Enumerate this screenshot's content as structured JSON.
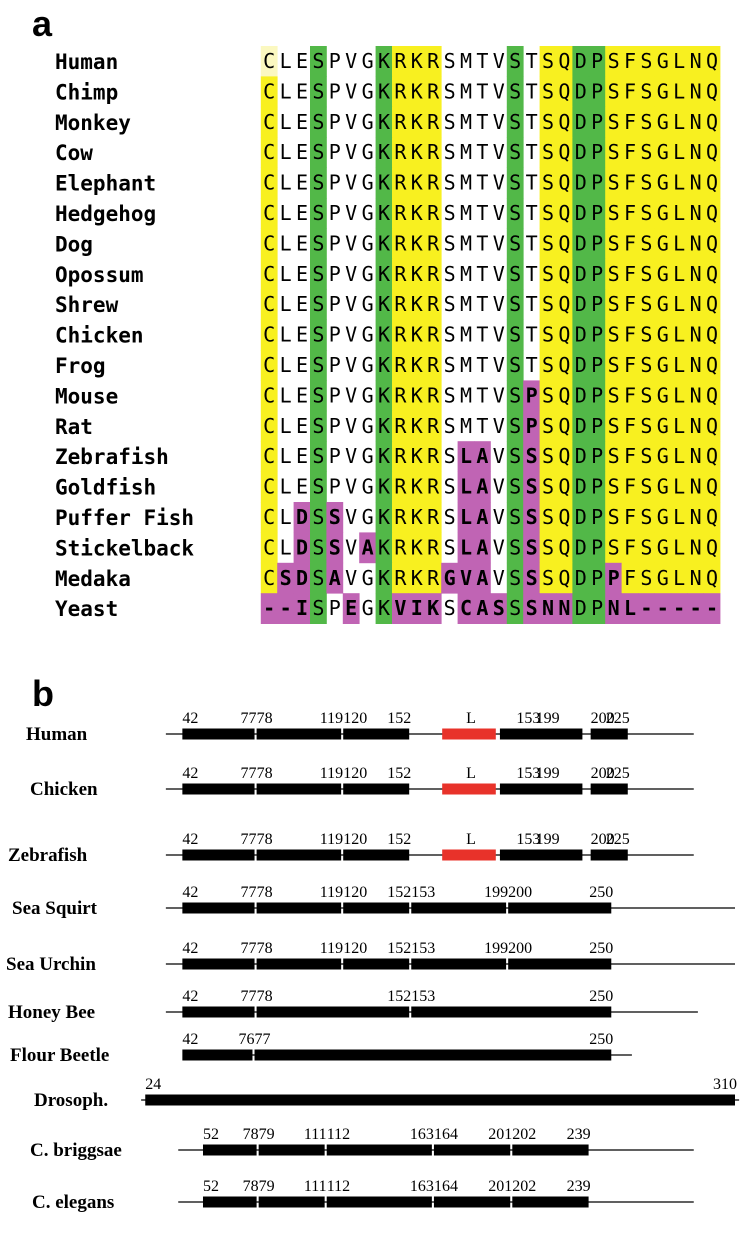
{
  "panels": {
    "a": {
      "label": "a"
    },
    "b": {
      "label": "b"
    }
  },
  "colors": {
    "yellow": "#f8f020",
    "green": "#52b848",
    "magenta": "#c064b4",
    "red": "#e8322a",
    "black": "#000000",
    "pale_yellow": "#fbf8c0"
  },
  "alignment": {
    "positions": 28,
    "sequences": [
      {
        "species": "Human",
        "seq": "CLESPVGKRKRSMTVSTSQDPSFSGLNQ",
        "bold": []
      },
      {
        "species": "Chimp",
        "seq": "CLESPVGKRKRSMTVSTSQDPSFSGLNQ",
        "bold": []
      },
      {
        "species": "Monkey",
        "seq": "CLESPVGKRKRSMTVSTSQDPSFSGLNQ",
        "bold": []
      },
      {
        "species": "Cow",
        "seq": "CLESPVGKRKRSMTVSTSQDPSFSGLNQ",
        "bold": []
      },
      {
        "species": "Elephant",
        "seq": "CLESPVGKRKRSMTVSTSQDPSFSGLNQ",
        "bold": []
      },
      {
        "species": "Hedgehog",
        "seq": "CLESPVGKRKRSMTVSTSQDPSFSGLNQ",
        "bold": []
      },
      {
        "species": "Dog",
        "seq": "CLESPVGKRKRSMTVSTSQDPSFSGLNQ",
        "bold": []
      },
      {
        "species": "Opossum",
        "seq": "CLESPVGKRKRSMTVSTSQDPSFSGLNQ",
        "bold": []
      },
      {
        "species": "Shrew",
        "seq": "CLESPVGKRKRSMTVSTSQDPSFSGLNQ",
        "bold": []
      },
      {
        "species": "Chicken",
        "seq": "CLESPVGKRKRSMTVSTSQDPSFSGLNQ",
        "bold": []
      },
      {
        "species": "Frog",
        "seq": "CLESPVGKRKRSMTVSTSQDPSFSGLNQ",
        "bold": []
      },
      {
        "species": "Mouse",
        "seq": "CLESPVGKRKRSMTVSPSQDPSFSGLNQ",
        "bold": [
          16
        ]
      },
      {
        "species": "Rat",
        "seq": "CLESPVGKRKRSMTVSPSQDPSFSGLNQ",
        "bold": [
          16
        ]
      },
      {
        "species": "Zebrafish",
        "seq": "CLESPVGKRKRSLAVSSSQDPSFSGLNQ",
        "bold": [
          12,
          13,
          16
        ]
      },
      {
        "species": "Goldfish",
        "seq": "CLESPVGKRKRSLAVSSSQDPSFSGLNQ",
        "bold": [
          12,
          13,
          16
        ]
      },
      {
        "species": "Puffer Fish",
        "seq": "CLDSSVGKRKRSLAVSSSQDPSFSGLNQ",
        "bold": [
          2,
          4,
          12,
          13,
          16
        ]
      },
      {
        "species": "Stickelback",
        "seq": "CLDSSVAKRKRSLAVSSSQDPSFSGLNQ",
        "bold": [
          2,
          4,
          6,
          12,
          13,
          16
        ]
      },
      {
        "species": "Medaka",
        "seq": "CSDSAVGKRKRGVAVSSSQDPPFSGLNQ",
        "bold": [
          1,
          2,
          4,
          11,
          12,
          13,
          16,
          21
        ]
      },
      {
        "species": "Yeast",
        "seq": "--ISPEGKVIKSCASSSNNDPNL-----",
        "bold": [
          0,
          1,
          2,
          5,
          8,
          9,
          10,
          12,
          13,
          14,
          16,
          17,
          18,
          21,
          22,
          23,
          24,
          25,
          26,
          27
        ]
      }
    ]
  },
  "gene_structures": {
    "scale_min": 20,
    "scale_max": 310,
    "loop_label": "L",
    "rows": [
      {
        "name": "Human",
        "line": [
          34,
          290
        ],
        "exons": [
          [
            42,
            77
          ],
          [
            78,
            119
          ],
          [
            120,
            152
          ],
          [
            153,
            199
          ],
          [
            200,
            225
          ]
        ],
        "loop": [
          168,
          194
        ],
        "labels": [
          {
            "text": "42",
            "at": 42
          },
          {
            "text": "77",
            "at": 77
          },
          {
            "text": "78",
            "at": 78
          },
          {
            "text": "119",
            "at": 119
          },
          {
            "text": "120",
            "at": 120
          },
          {
            "text": "152",
            "at": 152
          },
          {
            "text": "L",
            "at": 181,
            "anchor": "middle"
          },
          {
            "text": "153",
            "at": 153,
            "shift": 204
          },
          {
            "text": "199",
            "at": 199,
            "shift": 224
          },
          {
            "text": "200",
            "at": 200
          },
          {
            "text": "225",
            "at": 225
          }
        ]
      },
      {
        "name": "Chicken",
        "line": [
          34,
          290
        ],
        "exons": [
          [
            42,
            77
          ],
          [
            78,
            119
          ],
          [
            120,
            152
          ],
          [
            153,
            199
          ],
          [
            200,
            225
          ]
        ],
        "loop": [
          168,
          194
        ],
        "labels": [
          {
            "text": "42",
            "at": 42
          },
          {
            "text": "77",
            "at": 77
          },
          {
            "text": "78",
            "at": 78
          },
          {
            "text": "119",
            "at": 119
          },
          {
            "text": "120",
            "at": 120
          },
          {
            "text": "152",
            "at": 152
          },
          {
            "text": "L",
            "at": 181,
            "anchor": "middle"
          },
          {
            "text": "153",
            "at": 153,
            "shift": 204
          },
          {
            "text": "199",
            "at": 199,
            "shift": 224
          },
          {
            "text": "200",
            "at": 200
          },
          {
            "text": "225",
            "at": 225
          }
        ]
      },
      {
        "name": "Zebrafish",
        "line": [
          34,
          290
        ],
        "exons": [
          [
            42,
            77
          ],
          [
            78,
            119
          ],
          [
            120,
            152
          ],
          [
            153,
            199
          ],
          [
            200,
            225
          ]
        ],
        "loop": [
          168,
          194
        ],
        "labels": [
          {
            "text": "42",
            "at": 42
          },
          {
            "text": "77",
            "at": 77
          },
          {
            "text": "78",
            "at": 78
          },
          {
            "text": "119",
            "at": 119
          },
          {
            "text": "120",
            "at": 120
          },
          {
            "text": "152",
            "at": 152
          },
          {
            "text": "L",
            "at": 181,
            "anchor": "middle"
          },
          {
            "text": "153",
            "at": 153,
            "shift": 204
          },
          {
            "text": "199",
            "at": 199,
            "shift": 224
          },
          {
            "text": "200",
            "at": 200
          },
          {
            "text": "225",
            "at": 225
          }
        ]
      },
      {
        "name": "Sea Squirt",
        "line": [
          34,
          310
        ],
        "exons": [
          [
            42,
            77
          ],
          [
            78,
            119
          ],
          [
            120,
            152
          ],
          [
            153,
            199
          ],
          [
            200,
            250
          ]
        ],
        "labels": [
          {
            "text": "42",
            "at": 42
          },
          {
            "text": "77",
            "at": 77
          },
          {
            "text": "78",
            "at": 78
          },
          {
            "text": "119",
            "at": 119
          },
          {
            "text": "120",
            "at": 120
          },
          {
            "text": "152",
            "at": 152
          },
          {
            "text": "153",
            "at": 153
          },
          {
            "text": "199",
            "at": 199
          },
          {
            "text": "200",
            "at": 200
          },
          {
            "text": "250",
            "at": 250
          }
        ]
      },
      {
        "name": "Sea Urchin",
        "line": [
          34,
          310
        ],
        "exons": [
          [
            42,
            77
          ],
          [
            78,
            119
          ],
          [
            120,
            152
          ],
          [
            153,
            199
          ],
          [
            200,
            250
          ]
        ],
        "labels": [
          {
            "text": "42",
            "at": 42
          },
          {
            "text": "77",
            "at": 77
          },
          {
            "text": "78",
            "at": 78
          },
          {
            "text": "119",
            "at": 119
          },
          {
            "text": "120",
            "at": 120
          },
          {
            "text": "152",
            "at": 152
          },
          {
            "text": "153",
            "at": 153
          },
          {
            "text": "199",
            "at": 199
          },
          {
            "text": "200",
            "at": 200
          },
          {
            "text": "250",
            "at": 250
          }
        ]
      },
      {
        "name": "Honey Bee",
        "line": [
          34,
          292
        ],
        "exons": [
          [
            42,
            77
          ],
          [
            78,
            152
          ],
          [
            153,
            250
          ]
        ],
        "labels": [
          {
            "text": "42",
            "at": 42
          },
          {
            "text": "77",
            "at": 77
          },
          {
            "text": "78",
            "at": 78
          },
          {
            "text": "152",
            "at": 152
          },
          {
            "text": "153",
            "at": 153
          },
          {
            "text": "250",
            "at": 250
          }
        ]
      },
      {
        "name": "Flour Beetle",
        "line": [
          44,
          260
        ],
        "exons": [
          [
            42,
            76
          ],
          [
            77,
            250
          ]
        ],
        "labels": [
          {
            "text": "42",
            "at": 42
          },
          {
            "text": "76",
            "at": 76
          },
          {
            "text": "77",
            "at": 77
          },
          {
            "text": "250",
            "at": 250
          }
        ]
      },
      {
        "name": "Drosoph.",
        "line": [
          22,
          312
        ],
        "exons": [
          [
            24,
            310
          ]
        ],
        "labels": [
          {
            "text": "24",
            "at": 24
          },
          {
            "text": "310",
            "at": 310
          }
        ]
      },
      {
        "name": "C. briggsae",
        "line": [
          40,
          290
        ],
        "exons": [
          [
            52,
            78
          ],
          [
            79,
            111
          ],
          [
            112,
            163
          ],
          [
            164,
            201
          ],
          [
            202,
            239
          ]
        ],
        "labels": [
          {
            "text": "52",
            "at": 52
          },
          {
            "text": "78",
            "at": 78
          },
          {
            "text": "79",
            "at": 79
          },
          {
            "text": "111",
            "at": 111
          },
          {
            "text": "112",
            "at": 112
          },
          {
            "text": "163",
            "at": 163
          },
          {
            "text": "164",
            "at": 164
          },
          {
            "text": "201",
            "at": 201
          },
          {
            "text": "202",
            "at": 202
          },
          {
            "text": "239",
            "at": 239
          }
        ]
      },
      {
        "name": "C. elegans",
        "line": [
          40,
          290
        ],
        "exons": [
          [
            52,
            78
          ],
          [
            79,
            111
          ],
          [
            112,
            163
          ],
          [
            164,
            201
          ],
          [
            202,
            239
          ]
        ],
        "labels": [
          {
            "text": "52",
            "at": 52
          },
          {
            "text": "78",
            "at": 78
          },
          {
            "text": "79",
            "at": 79
          },
          {
            "text": "111",
            "at": 111
          },
          {
            "text": "112",
            "at": 112
          },
          {
            "text": "163",
            "at": 163
          },
          {
            "text": "164",
            "at": 164
          },
          {
            "text": "201",
            "at": 201
          },
          {
            "text": "202",
            "at": 202
          },
          {
            "text": "239",
            "at": 239
          }
        ]
      }
    ]
  }
}
